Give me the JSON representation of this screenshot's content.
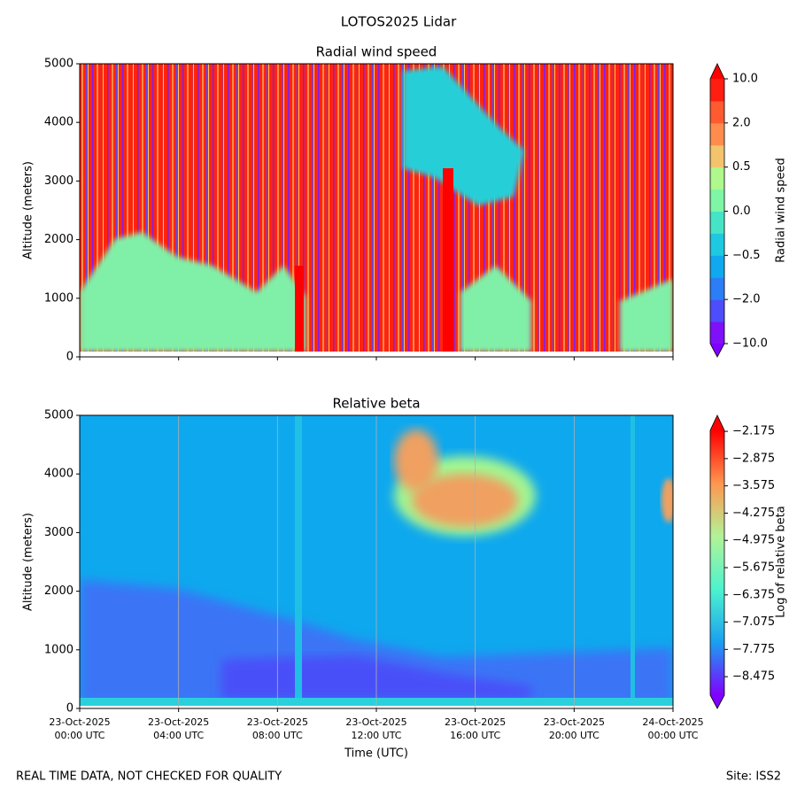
{
  "title": "LOTOS2025 Lidar",
  "footer": {
    "left": "REAL TIME DATA, NOT CHECKED FOR QUALITY",
    "right": "Site: ISS2"
  },
  "chart_data": [
    {
      "type": "heatmap",
      "title": "Radial wind speed",
      "ylabel": "Altitude (meters)",
      "xlim": [
        0,
        24
      ],
      "xticks": [
        0,
        4,
        8,
        12,
        16,
        20,
        24
      ],
      "ylim": [
        0,
        5000
      ],
      "yticks": [
        0,
        1000,
        2000,
        3000,
        4000,
        5000
      ],
      "colorbar": {
        "label": "Radial wind speed",
        "levels": [
          -10,
          -5,
          -2,
          -1,
          -0.5,
          -0.2,
          0,
          0.2,
          0.5,
          1,
          2,
          5,
          10
        ],
        "colors": [
          "#8010fa",
          "#4e4dfb",
          "#2c7ef7",
          "#10a8ee",
          "#1ec8e0",
          "#46e4c6",
          "#7ef6a6",
          "#aef88c",
          "#f4c46c",
          "#ff8c4c",
          "#ff5a30",
          "#ff1e10"
        ],
        "extend_colors": [
          "#8000ff",
          "#ff0000"
        ],
        "ticks": [
          {
            "value": -10,
            "label": "−10.0"
          },
          {
            "value": -2,
            "label": "−2.0"
          },
          {
            "value": -0.5,
            "label": "−0.5"
          },
          {
            "value": 0,
            "label": "0.0"
          },
          {
            "value": 0.5,
            "label": "0.5"
          },
          {
            "value": 2,
            "label": "2.0"
          },
          {
            "value": 10,
            "label": "10.0"
          }
        ]
      }
    },
    {
      "type": "heatmap",
      "title": "Relative beta",
      "ylabel": "Altitude (meters)",
      "xlabel": "Time (UTC)",
      "xlim": [
        0,
        24
      ],
      "xticks": [
        {
          "value": 0,
          "label": "23-Oct-2025\n00:00 UTC"
        },
        {
          "value": 4,
          "label": "23-Oct-2025\n04:00 UTC"
        },
        {
          "value": 8,
          "label": "23-Oct-2025\n08:00 UTC"
        },
        {
          "value": 12,
          "label": "23-Oct-2025\n12:00 UTC"
        },
        {
          "value": 16,
          "label": "23-Oct-2025\n16:00 UTC"
        },
        {
          "value": 20,
          "label": "23-Oct-2025\n20:00 UTC"
        },
        {
          "value": 24,
          "label": "24-Oct-2025\n00:00 UTC"
        }
      ],
      "ylim": [
        0,
        5000
      ],
      "yticks": [
        0,
        1000,
        2000,
        3000,
        4000,
        5000
      ],
      "grid": "x",
      "colorbar": {
        "label": "Log of relative beta",
        "clim": [
          -8.95,
          -2.15
        ],
        "cmap": [
          "#8000ff",
          "#1aa0f0",
          "#4df3ce",
          "#b2f396",
          "#ff964f",
          "#ff0000"
        ],
        "extend_colors": [
          "#8000ff",
          "#ff0000"
        ],
        "ticks": [
          {
            "value": -2.175,
            "label": "−2.175"
          },
          {
            "value": -2.875,
            "label": "−2.875"
          },
          {
            "value": -3.575,
            "label": "−3.575"
          },
          {
            "value": -4.275,
            "label": "−4.275"
          },
          {
            "value": -4.975,
            "label": "−4.975"
          },
          {
            "value": -5.675,
            "label": "−5.675"
          },
          {
            "value": -6.375,
            "label": "−6.375"
          },
          {
            "value": -7.075,
            "label": "−7.075"
          },
          {
            "value": -7.775,
            "label": "−7.775"
          },
          {
            "value": -8.475,
            "label": "−8.475"
          }
        ]
      }
    }
  ]
}
